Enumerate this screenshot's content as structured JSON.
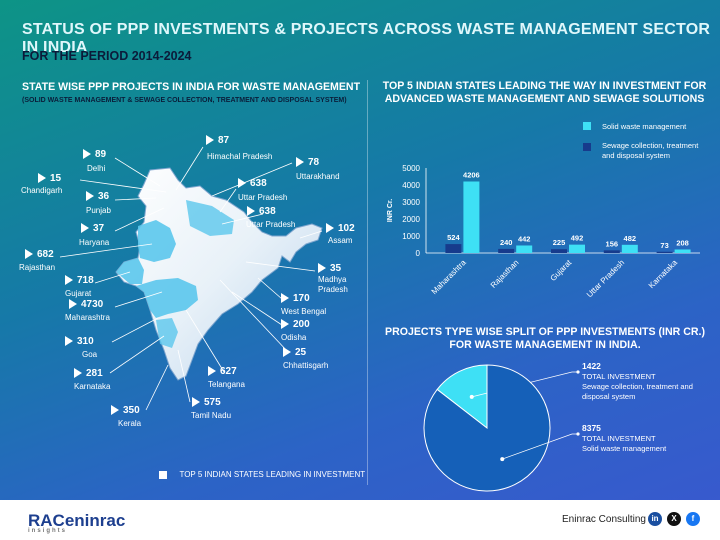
{
  "header": {
    "title": "STATUS OF PPP INVESTMENTS & PROJECTS ACROSS WASTE MANAGEMENT SECTOR IN INDIA",
    "period": "FOR THE PERIOD 2014-2024"
  },
  "map_section": {
    "title": "STATE WISE PPP PROJECTS IN INDIA FOR WASTE MANAGEMENT",
    "subtitle": "(SOLID WASTE MANAGEMENT & SEWAGE COLLECTION, TREATMENT AND DISPOSAL SYSTEM)",
    "legend": "TOP 5 INDIAN STATES LEADING IN INVESTMENT",
    "states": [
      {
        "value": "87",
        "name": "Himachal Pradesh"
      },
      {
        "value": "89",
        "name": "Delhi"
      },
      {
        "value": "78",
        "name": "Uttarakhand"
      },
      {
        "value": "15",
        "name": "Chandigarh"
      },
      {
        "value": "638",
        "name": "Uttar Pradesh"
      },
      {
        "value": "36",
        "name": "Punjab"
      },
      {
        "value": "638",
        "name": "Uttar Pradesh"
      },
      {
        "value": "37",
        "name": "Haryana"
      },
      {
        "value": "102",
        "name": "Assam"
      },
      {
        "value": "682",
        "name": "Rajasthan"
      },
      {
        "value": "35",
        "name": "Madhya Pradesh"
      },
      {
        "value": "718",
        "name": "Gujarat"
      },
      {
        "value": "4730",
        "name": "Maharashtra"
      },
      {
        "value": "170",
        "name": "West Bengal"
      },
      {
        "value": "200",
        "name": "Odisha"
      },
      {
        "value": "310",
        "name": "Goa"
      },
      {
        "value": "25",
        "name": "Chhattisgarh"
      },
      {
        "value": "281",
        "name": "Karnataka"
      },
      {
        "value": "627",
        "name": "Telangana"
      },
      {
        "value": "575",
        "name": "Tamil Nadu"
      },
      {
        "value": "350",
        "name": "Kerala"
      }
    ]
  },
  "chart_data": [
    {
      "type": "bar",
      "title": "TOP 5 INDIAN STATES LEADING THE WAY IN INVESTMENT FOR ADVANCED WASTE MANAGEMENT AND SEWAGE SOLUTIONS",
      "ylabel": "INR Cr.",
      "ylim": [
        0,
        5000
      ],
      "yticks": [
        "5000",
        "4000",
        "3000",
        "2000",
        "1000",
        "0"
      ],
      "categories": [
        "Maharashtra",
        "Rajasthan",
        "Gujarat",
        "Uttar Pradesh",
        "Karnataka"
      ],
      "series": [
        {
          "name": "Solid waste management",
          "color": "#3ee0f5",
          "values": [
            4206,
            442,
            492,
            482,
            208
          ]
        },
        {
          "name": "Sewage collection, treatment and disposal system",
          "color": "#173b8c",
          "values": [
            524,
            240,
            225,
            156,
            73
          ]
        }
      ]
    },
    {
      "type": "pie",
      "title": "PROJECTS TYPE WISE SPLIT OF PPP INVESTMENTS (INR CR.) FOR WASTE MANAGEMENT IN INDIA.",
      "slices": [
        {
          "value": 1422,
          "label": "1422",
          "caption": "TOTAL INVESTMENT",
          "name": "Sewage collection, treatment and disposal system",
          "color": "#3ee0f5"
        },
        {
          "value": 8375,
          "label": "8375",
          "caption": "TOTAL INVESTMENT",
          "name": "Solid waste management",
          "color": "#1560b8"
        }
      ]
    }
  ],
  "footer": {
    "brand": "RACeninrac",
    "brand_tag": "insights",
    "company": "Eninrac Consulting",
    "social": [
      "in",
      "X",
      "f"
    ]
  }
}
